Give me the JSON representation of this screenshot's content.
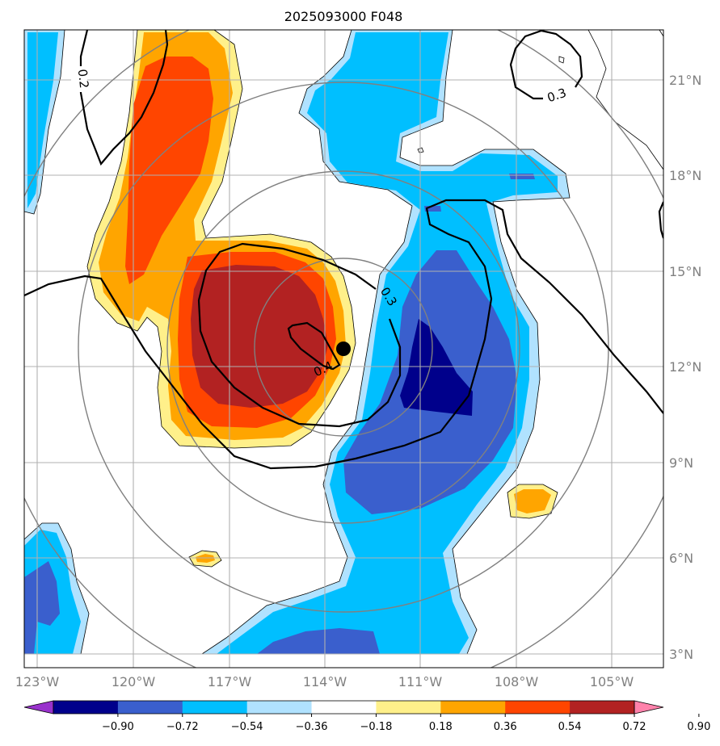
{
  "title": "2025093000 F048",
  "lat_labels": [
    "21°N",
    "18°N",
    "15°N",
    "12°N",
    "9°N",
    "6°N",
    "3°N"
  ],
  "lon_labels": [
    "123°W",
    "120°W",
    "117°W",
    "114°W",
    "111°W",
    "108°W",
    "105°W"
  ],
  "contour_labels": [
    "0.2",
    "0.3",
    "0.3",
    "0.4"
  ],
  "colorbar": {
    "ticks": [
      "−0.90",
      "−0.72",
      "−0.54",
      "−0.36",
      "−0.18",
      "0.18",
      "0.36",
      "0.54",
      "0.72",
      "0.90"
    ],
    "colors": [
      "#9932cc",
      "#00008b",
      "#3a5fcd",
      "#00bfff",
      "#b0e2ff",
      "#ffffff",
      "#fff08a",
      "#ffa500",
      "#ff4500",
      "#b22222",
      "#ff82ab"
    ]
  },
  "storm_center": {
    "lon": "113.4°W",
    "lat": "12.6°N"
  }
}
